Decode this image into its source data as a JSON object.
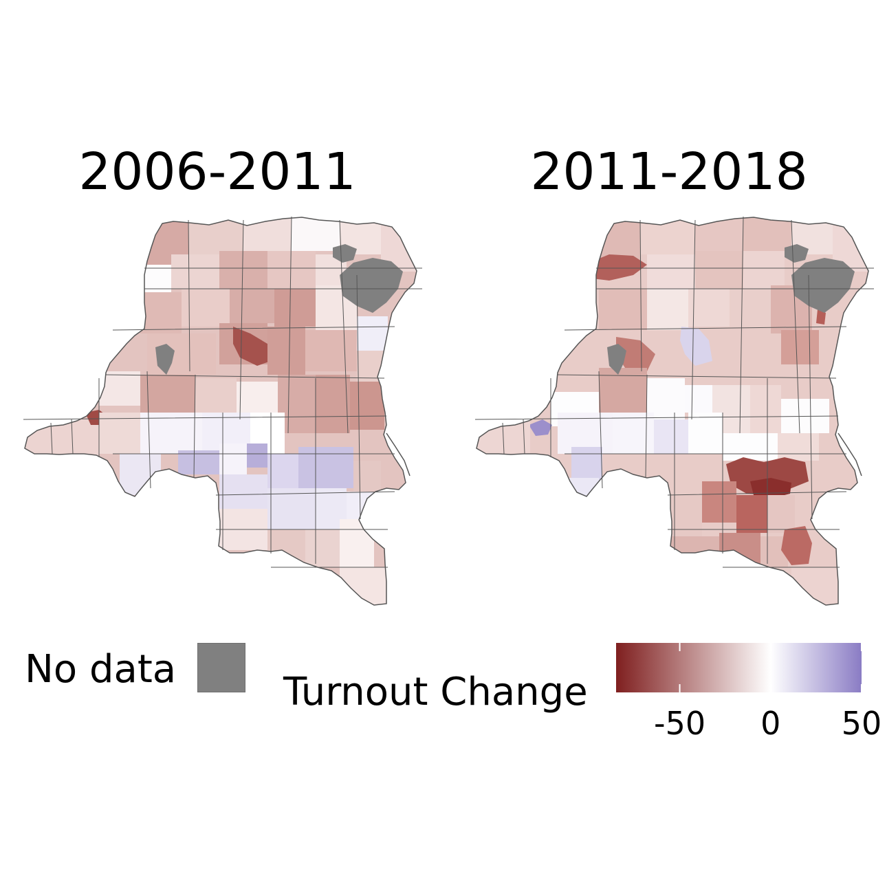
{
  "panels": [
    {
      "title": "2006-2011",
      "no_data_regions": [
        "north-east-A",
        "north-east-B",
        "west-central"
      ]
    },
    {
      "title": "2011-2018",
      "no_data_regions": [
        "north-east-A",
        "north-east-B",
        "west-central"
      ]
    }
  ],
  "legend": {
    "no_data_label": "No data",
    "no_data_color": "#808080",
    "title": "Turnout Change",
    "scale": {
      "type": "diverging",
      "low_color": "#7f1f1f",
      "mid_color": "#ffffff",
      "high_color": "#8a7cc4",
      "domain": [
        -85,
        50
      ],
      "ticks": [
        -50,
        0,
        50
      ],
      "tick_labels": [
        "-50",
        "0",
        "50"
      ]
    }
  },
  "colors": {
    "border": "#555555",
    "no_data": "#808080",
    "background": "#ffffff"
  }
}
